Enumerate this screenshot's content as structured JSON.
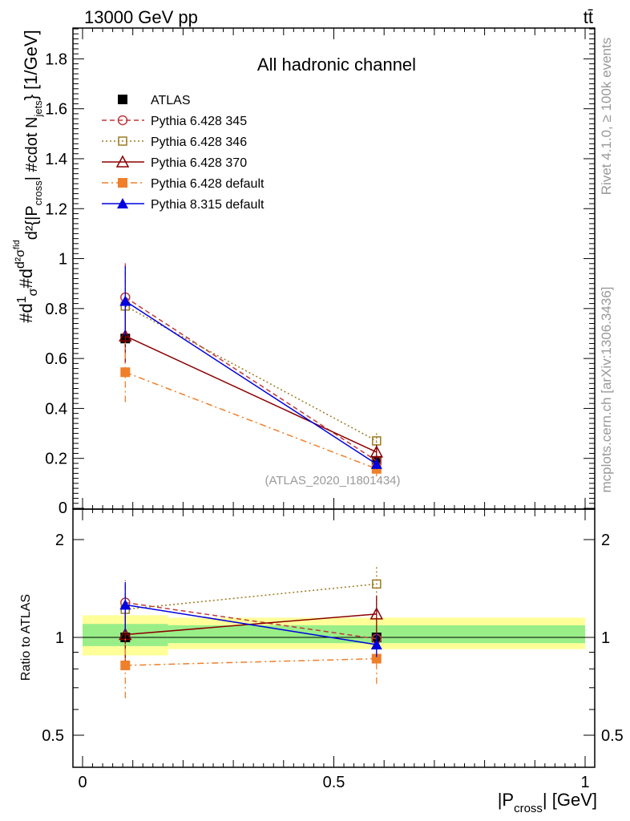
{
  "header": {
    "left": "13000 GeV pp",
    "right": "tt̄"
  },
  "side_labels": {
    "rivet": "Rivet 4.1.0, ≥ 100k events",
    "mcplots": "mcplots.cern.ch [arXiv:1306.3436]"
  },
  "chart_data": {
    "type": "line",
    "title": "All hadronic channel",
    "watermark": "(ATLAS_2020_I1801434)",
    "xlabel": "|P_cross| [GeV]",
    "ylabel": "#d¹/σ#d d²σfid / d²{|P_cross| #cdot N_jets} [1/GeV]",
    "ylabel_main_parts": {
      "hash_d": "#d",
      "one_over_sigma": "1",
      "sigma": "σ",
      "hash_d2": "#d",
      "d2_sigma": "d²σ",
      "fid": "fid",
      "d2_open": "d²{|P",
      "cross": "cross",
      "cdot": "| #cdot N",
      "jets": "jets",
      "close": "} [1/GeV]"
    },
    "ratio_ylabel": "Ratio to ATLAS",
    "xlim": [
      0,
      1
    ],
    "ylim": [
      0,
      1.92
    ],
    "ratio_ylim": [
      0.4,
      2.35
    ],
    "x_ticks": [
      "0",
      "0.5",
      "1"
    ],
    "y_ticks": [
      "0.2",
      "0.4",
      "0.6",
      "0.8",
      "1",
      "1.2",
      "1.4",
      "1.6",
      "1.8"
    ],
    "y_tick_zero": "0",
    "ratio_ticks": [
      "0.5",
      "1",
      "2"
    ],
    "bins": [
      {
        "lo": 0.0,
        "hi": 0.17,
        "center": 0.085
      },
      {
        "lo": 0.17,
        "hi": 1.0,
        "center": 0.585
      }
    ],
    "band_inner": [
      [
        0.94,
        1.1
      ],
      [
        0.96,
        1.09
      ]
    ],
    "band_outer": [
      [
        0.88,
        1.17
      ],
      [
        0.92,
        1.15
      ]
    ],
    "series": [
      {
        "name": "ATLAS",
        "color": "#000000",
        "marker": "square-filled",
        "style": "none",
        "values": [
          0.68,
          0.19
        ],
        "errors": [
          0.03,
          0.02
        ],
        "ratio": [
          1.0,
          1.0
        ],
        "ratio_errors": [
          0,
          0
        ]
      },
      {
        "name": "Pythia 6.428 345",
        "color": "#c0393b",
        "marker": "circle-open",
        "style": "dashed",
        "values": [
          0.845,
          0.19
        ],
        "errors": [
          0.14,
          0.02
        ],
        "ratio": [
          1.28,
          0.99
        ],
        "ratio_errors": [
          0.22,
          0.06
        ]
      },
      {
        "name": "Pythia 6.428 346",
        "color": "#9c7a20",
        "marker": "square-open",
        "style": "dotted",
        "values": [
          0.81,
          0.27
        ],
        "errors": [
          0.13,
          0.04
        ],
        "ratio": [
          1.22,
          1.46
        ],
        "ratio_errors": [
          0.2,
          0.2
        ]
      },
      {
        "name": "Pythia 6.428 370",
        "color": "#8b0000",
        "marker": "triangle-open",
        "style": "solid",
        "values": [
          0.69,
          0.225
        ],
        "errors": [
          0.11,
          0.03
        ],
        "ratio": [
          1.02,
          1.18
        ],
        "ratio_errors": [
          0.18,
          0.16
        ]
      },
      {
        "name": "Pythia 6.428 default",
        "color": "#f07f2a",
        "marker": "square-filled",
        "style": "dashdot",
        "values": [
          0.545,
          0.158
        ],
        "errors": [
          0.12,
          0.03
        ],
        "ratio": [
          0.82,
          0.86
        ],
        "ratio_errors": [
          0.17,
          0.14
        ]
      },
      {
        "name": "Pythia 8.315 default",
        "color": "#0000e0",
        "marker": "triangle-filled",
        "style": "solid",
        "values": [
          0.83,
          0.177
        ],
        "errors": [
          0.14,
          0.02
        ],
        "ratio": [
          1.26,
          0.95
        ],
        "ratio_errors": [
          0.22,
          0.08
        ]
      }
    ]
  }
}
